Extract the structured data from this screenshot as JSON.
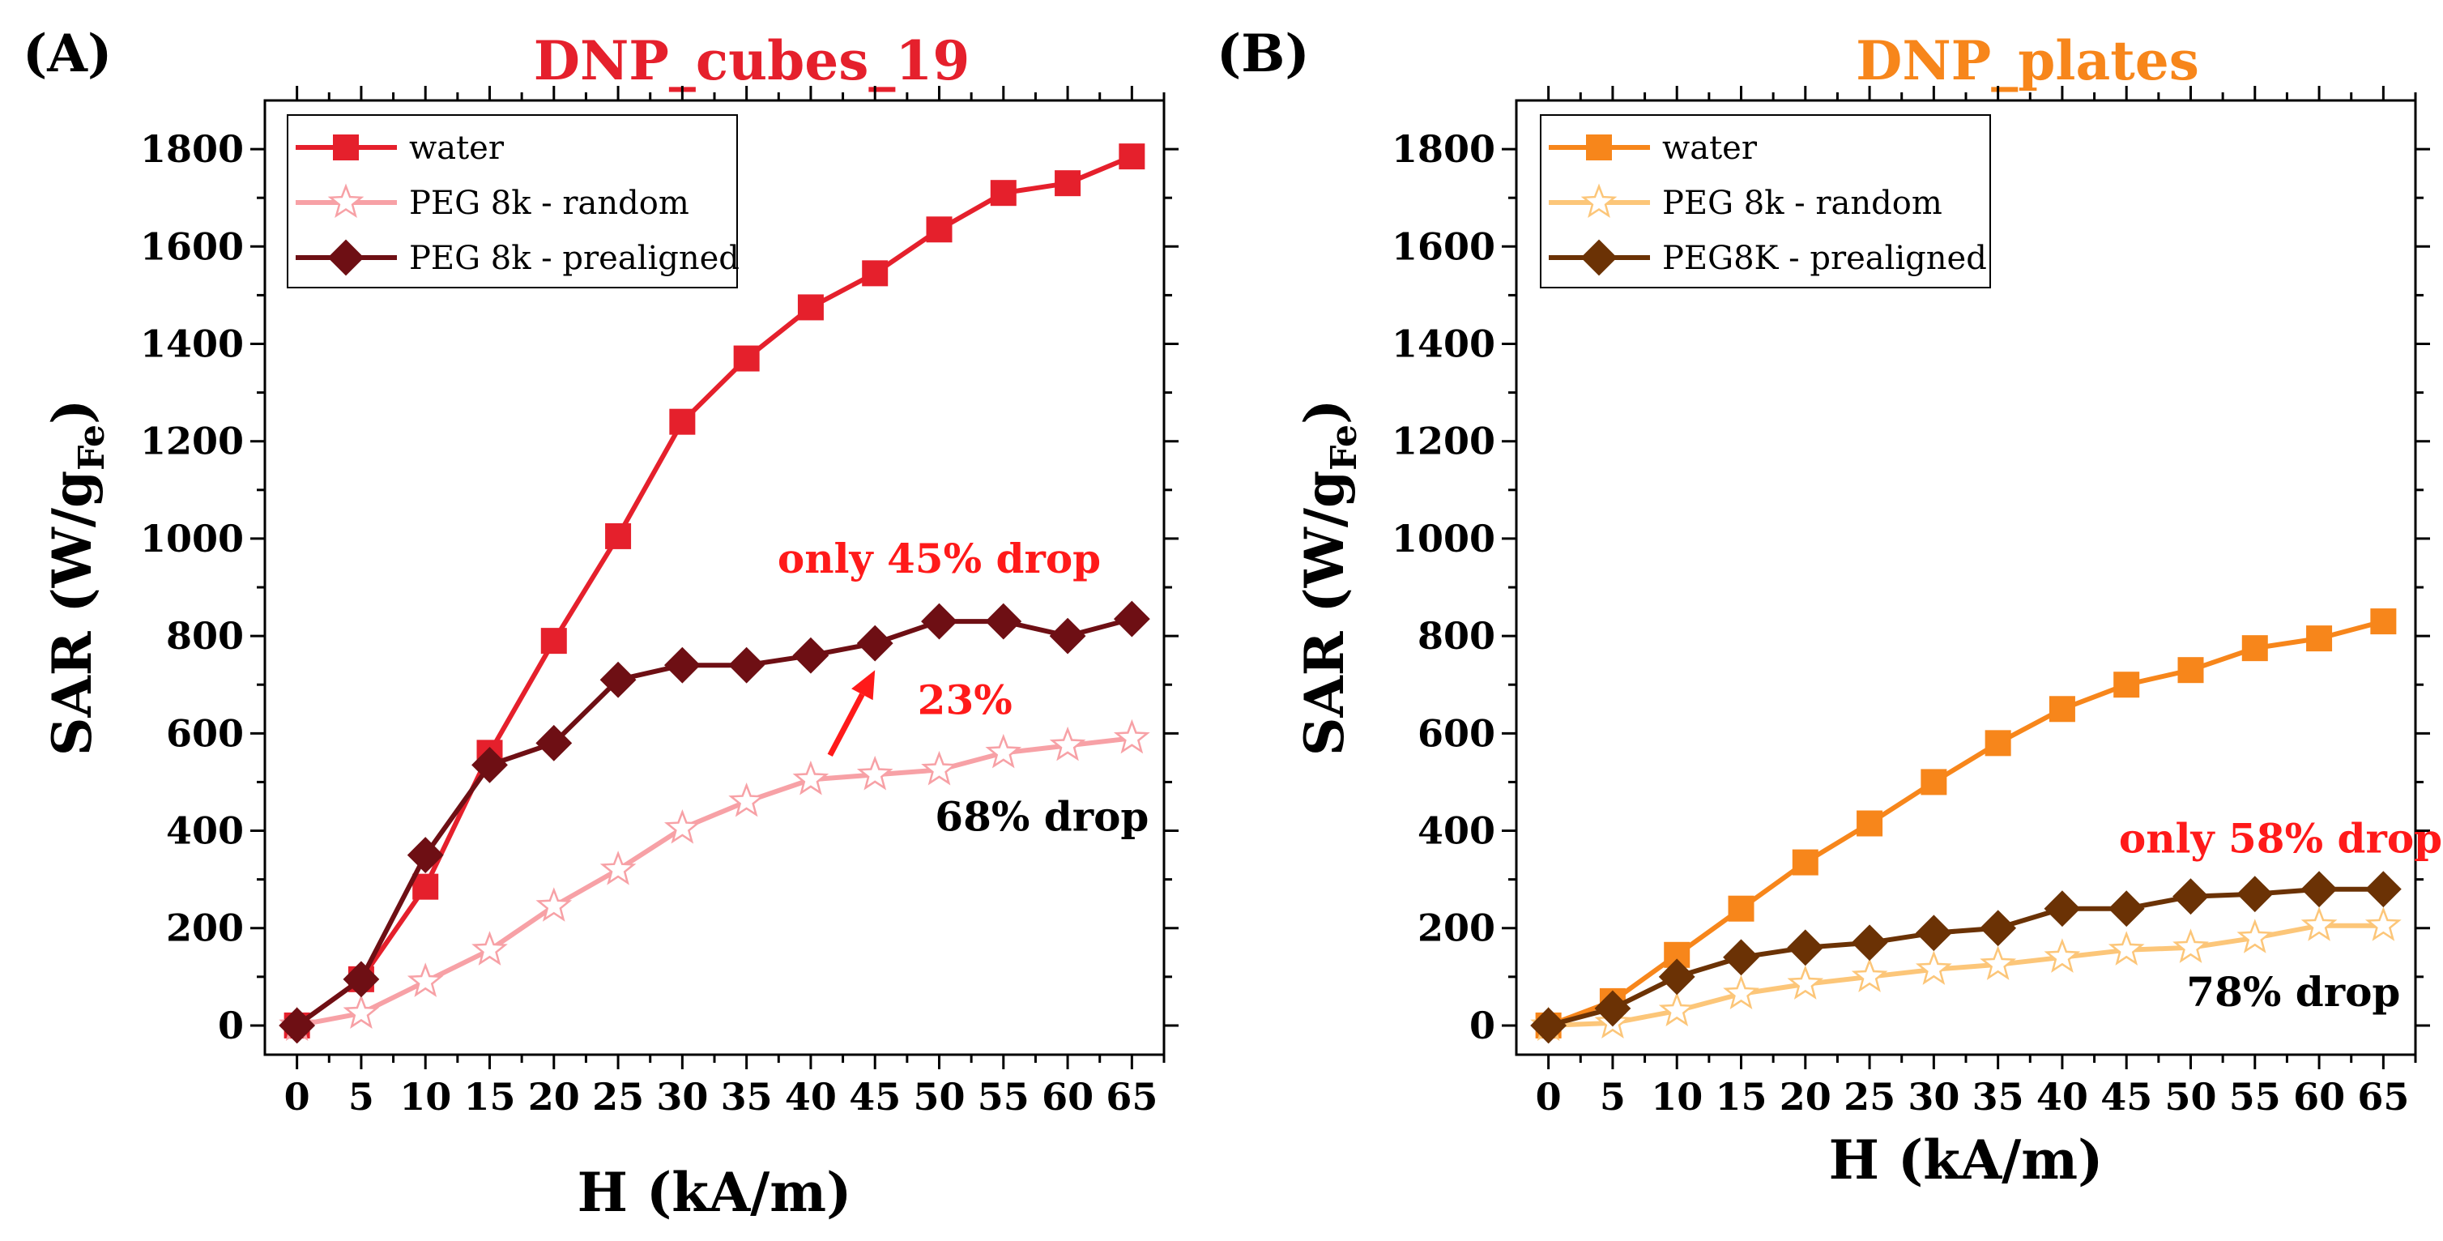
{
  "chart_data": [
    {
      "panel": "(A)",
      "type": "line",
      "title": "DNP_cubes_19",
      "title_color": "#e5202c",
      "xlabel": "H (kA/m)",
      "ylabel": "SAR (W/g",
      "ylabel_sub": "Fe",
      "ylabel_close": ")",
      "xlim": [
        -2.5,
        67.5
      ],
      "ylim": [
        -60,
        1900
      ],
      "xticks": [
        0,
        5,
        10,
        15,
        20,
        25,
        30,
        35,
        40,
        45,
        50,
        55,
        60,
        65
      ],
      "yticks": [
        0,
        200,
        400,
        600,
        800,
        1000,
        1200,
        1400,
        1600,
        1800
      ],
      "x": [
        0,
        5,
        10,
        15,
        20,
        25,
        30,
        35,
        40,
        45,
        50,
        55,
        60,
        65
      ],
      "series": [
        {
          "name": "water",
          "marker": "square",
          "color": "#e5202c",
          "fill": "#e5202c",
          "values": [
            0,
            95,
            285,
            560,
            790,
            1005,
            1240,
            1370,
            1475,
            1545,
            1635,
            1710,
            1730,
            1785
          ]
        },
        {
          "name": "PEG 8k - random",
          "marker": "star",
          "color": "#f7a1a6",
          "fill": "#ffffff",
          "values": [
            0,
            25,
            90,
            155,
            245,
            320,
            405,
            460,
            505,
            515,
            525,
            560,
            575,
            590
          ]
        },
        {
          "name": "PEG 8k - prealigned",
          "marker": "diamond",
          "color": "#6e0f14",
          "fill": "#6e0f14",
          "values": [
            0,
            95,
            350,
            535,
            580,
            710,
            740,
            740,
            760,
            785,
            830,
            830,
            800,
            835
          ]
        }
      ],
      "annotations": [
        {
          "text": "only 45% drop",
          "color": "#ff1a1a",
          "x": 50,
          "y": 930
        },
        {
          "text": "23%",
          "color": "#ff1a1a",
          "x": 52,
          "y": 640
        },
        {
          "text": "68% drop",
          "color": "#000000",
          "x": 58,
          "y": 400
        }
      ],
      "arrow": {
        "from": [
          41.5,
          555
        ],
        "to": [
          45,
          730
        ],
        "color": "#ff1a1a"
      }
    },
    {
      "panel": "(B)",
      "type": "line",
      "title": "DNP_plates",
      "title_color": "#f7861b",
      "xlabel": "H (kA/m)",
      "ylabel": "SAR (W/g",
      "ylabel_sub": "Fe",
      "ylabel_close": ")",
      "xlim": [
        -2.5,
        67.5
      ],
      "ylim": [
        -60,
        1900
      ],
      "xticks": [
        0,
        5,
        10,
        15,
        20,
        25,
        30,
        35,
        40,
        45,
        50,
        55,
        60,
        65
      ],
      "yticks": [
        0,
        200,
        400,
        600,
        800,
        1000,
        1200,
        1400,
        1600,
        1800
      ],
      "x": [
        0,
        5,
        10,
        15,
        20,
        25,
        30,
        35,
        40,
        45,
        50,
        55,
        60,
        65
      ],
      "series": [
        {
          "name": "water",
          "marker": "square",
          "color": "#f7861b",
          "fill": "#f7861b",
          "values": [
            0,
            50,
            145,
            240,
            335,
            415,
            500,
            580,
            650,
            700,
            730,
            775,
            795,
            830
          ]
        },
        {
          "name": "PEG 8k - random",
          "marker": "star",
          "color": "#fcc679",
          "fill": "#ffffff",
          "values": [
            0,
            5,
            30,
            65,
            85,
            100,
            115,
            125,
            140,
            155,
            160,
            180,
            205,
            205
          ]
        },
        {
          "name": "PEG8K - prealigned",
          "marker": "diamond",
          "color": "#6b3205",
          "fill": "#6b3205",
          "values": [
            0,
            35,
            100,
            140,
            160,
            170,
            190,
            200,
            240,
            240,
            265,
            270,
            280,
            280
          ]
        }
      ],
      "annotations": [
        {
          "text": "only 58% drop",
          "color": "#ff1a1a",
          "x": 57,
          "y": 355
        },
        {
          "text": "78% drop",
          "color": "#000000",
          "x": 58,
          "y": 40
        }
      ]
    }
  ]
}
